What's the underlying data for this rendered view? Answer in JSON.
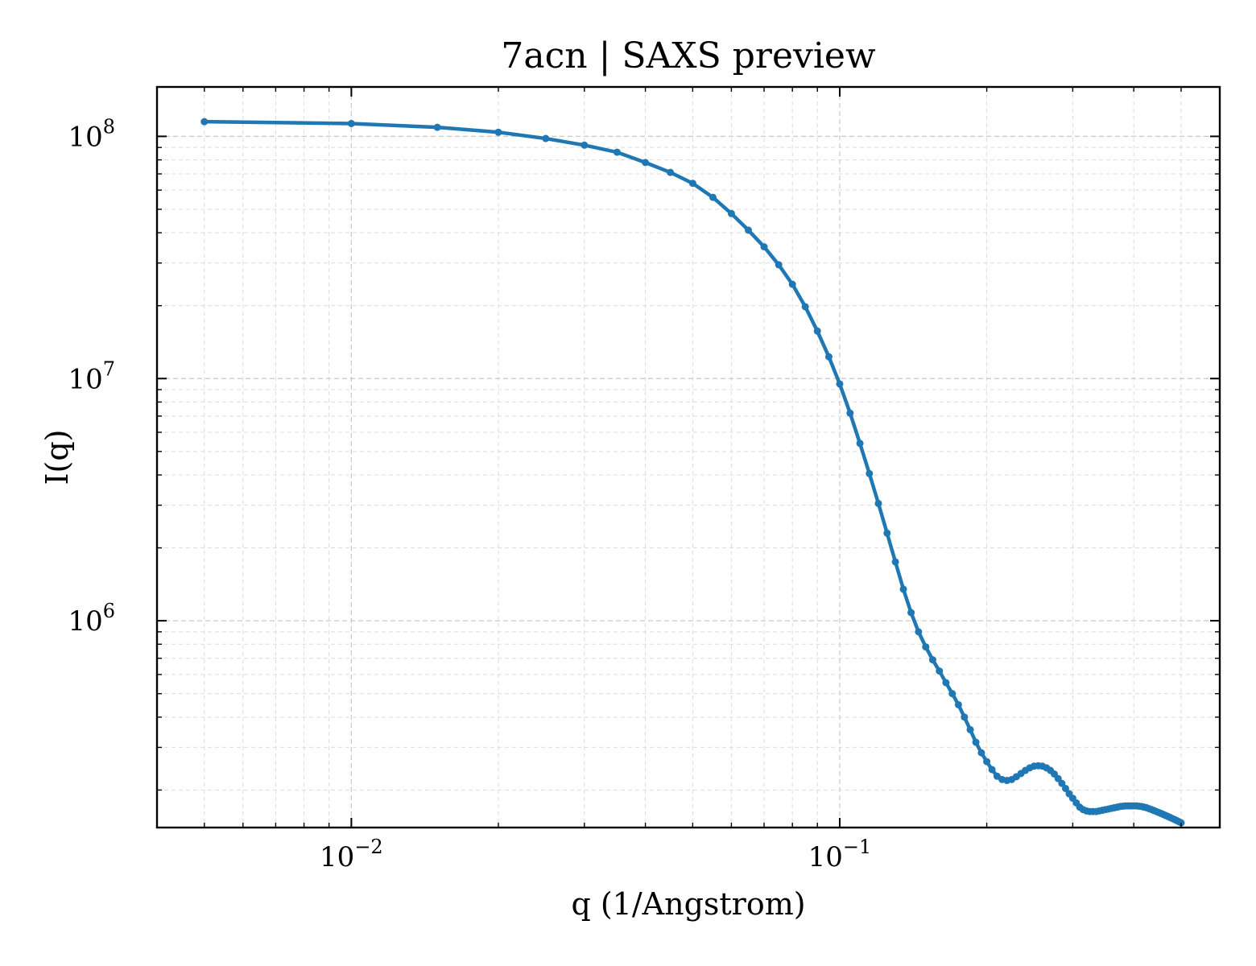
{
  "chart_data": {
    "type": "line",
    "title": "7acn | SAXS preview",
    "xlabel": "q (1/Angstrom)",
    "ylabel": "I(q)",
    "xscale": "log",
    "yscale": "log",
    "xlim": [
      0.004,
      0.6
    ],
    "ylim": [
      140000,
      160000000
    ],
    "grid": true,
    "x_ticks": [
      {
        "value": 0.01,
        "base": "10",
        "exp": "−2"
      },
      {
        "value": 0.1,
        "base": "10",
        "exp": "−1"
      }
    ],
    "y_ticks": [
      {
        "value": 1000000,
        "base": "10",
        "exp": "6"
      },
      {
        "value": 10000000,
        "base": "10",
        "exp": "7"
      },
      {
        "value": 100000000,
        "base": "10",
        "exp": "8"
      }
    ],
    "series": [
      {
        "color": "#1f77b4",
        "x": [
          0.005,
          0.01,
          0.015,
          0.02,
          0.025,
          0.03,
          0.035,
          0.04,
          0.045,
          0.05,
          0.055,
          0.06,
          0.065,
          0.07,
          0.075,
          0.08,
          0.085,
          0.09,
          0.095,
          0.1,
          0.105,
          0.11,
          0.115,
          0.12,
          0.125,
          0.13,
          0.135,
          0.14,
          0.145,
          0.15,
          0.155,
          0.16,
          0.165,
          0.17,
          0.175,
          0.18,
          0.185,
          0.19,
          0.195,
          0.2,
          0.205,
          0.21,
          0.215,
          0.22,
          0.225,
          0.23,
          0.235,
          0.24,
          0.245,
          0.25,
          0.255,
          0.26,
          0.265,
          0.27,
          0.275,
          0.28,
          0.285,
          0.29,
          0.295,
          0.3,
          0.305,
          0.31,
          0.315,
          0.32,
          0.325,
          0.33,
          0.335,
          0.34,
          0.345,
          0.35,
          0.355,
          0.36,
          0.365,
          0.37,
          0.375,
          0.38,
          0.385,
          0.39,
          0.395,
          0.4,
          0.405,
          0.41,
          0.415,
          0.42,
          0.425,
          0.43,
          0.435,
          0.44,
          0.445,
          0.45,
          0.455,
          0.46,
          0.465,
          0.47,
          0.475,
          0.48,
          0.485,
          0.49,
          0.495,
          0.5
        ],
        "y": [
          115000000,
          113000000,
          109000000,
          104000000,
          98000000,
          92000000,
          86000000,
          78000000,
          71000000,
          64000000,
          56000000,
          48000000,
          41000000,
          35000000,
          29500000,
          24500000,
          19800000,
          15700000,
          12300000,
          9500000,
          7200000,
          5400000,
          4050000,
          3050000,
          2300000,
          1750000,
          1350000,
          1080000,
          900000,
          780000,
          690000,
          620000,
          555000,
          500000,
          450000,
          400000,
          355000,
          315000,
          285000,
          262000,
          243000,
          228000,
          221000,
          219000,
          221000,
          227000,
          234000,
          241000,
          247000,
          251000,
          252000,
          251000,
          247000,
          241000,
          233000,
          223000,
          213000,
          203000,
          193000,
          185000,
          177000,
          170000,
          166000,
          164000,
          163000,
          163000,
          163000,
          164000,
          165000,
          166000,
          167000,
          168000,
          169000,
          170000,
          171000,
          171500,
          172000,
          172000,
          172000,
          172000,
          172000,
          171500,
          171000,
          170000,
          169000,
          167500,
          166000,
          164500,
          163000,
          161500,
          160000,
          158500,
          157000,
          155500,
          154000,
          152500,
          151000,
          149500,
          148000,
          146500
        ]
      }
    ]
  }
}
